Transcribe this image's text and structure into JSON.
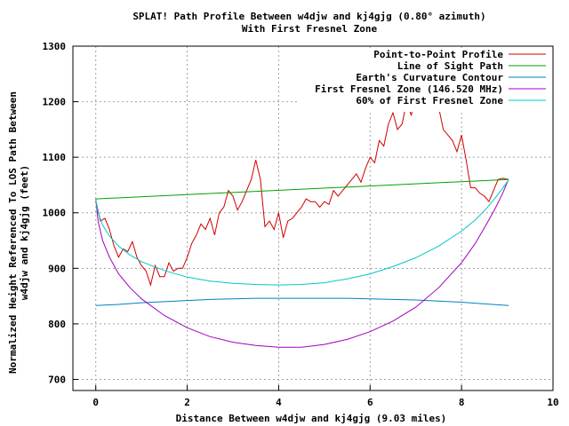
{
  "chart_data": {
    "type": "line",
    "title": "SPLAT! Path Profile Between w4djw and kj4gjg (0.80° azimuth)",
    "subtitle": "With First Fresnel Zone",
    "xlabel": "Distance Between w4djw and kj4gjg (9.03 miles)",
    "ylabel_line1": "Normalized Height Referenced To LOS Path Between",
    "ylabel_line2": "w4djw and kj4gjg (feet)",
    "xlim": [
      -0.5,
      10
    ],
    "ylim": [
      680,
      1300
    ],
    "xticks": [
      0,
      2,
      4,
      6,
      8,
      10
    ],
    "yticks": [
      700,
      800,
      900,
      1000,
      1100,
      1200,
      1300
    ],
    "grid": true,
    "legend_position": "top-right",
    "series": [
      {
        "name": "Point-to-Point Profile",
        "color": "#d00000",
        "x": [
          0,
          0.1,
          0.2,
          0.3,
          0.4,
          0.5,
          0.6,
          0.7,
          0.8,
          0.9,
          1.0,
          1.1,
          1.2,
          1.3,
          1.4,
          1.5,
          1.6,
          1.7,
          1.8,
          1.9,
          2.0,
          2.1,
          2.2,
          2.3,
          2.4,
          2.5,
          2.6,
          2.7,
          2.8,
          2.9,
          3.0,
          3.1,
          3.2,
          3.3,
          3.4,
          3.5,
          3.6,
          3.7,
          3.8,
          3.9,
          4.0,
          4.1,
          4.2,
          4.3,
          4.4,
          4.5,
          4.6,
          4.7,
          4.8,
          4.9,
          5.0,
          5.1,
          5.2,
          5.3,
          5.4,
          5.5,
          5.6,
          5.7,
          5.8,
          5.9,
          6.0,
          6.1,
          6.2,
          6.3,
          6.4,
          6.5,
          6.6,
          6.7,
          6.8,
          6.9,
          7.0,
          7.1,
          7.2,
          7.3,
          7.4,
          7.5,
          7.6,
          7.7,
          7.8,
          7.9,
          8.0,
          8.1,
          8.2,
          8.3,
          8.4,
          8.5,
          8.6,
          8.7,
          8.8,
          8.9,
          9.03
        ],
        "values": [
          1022,
          985,
          990,
          970,
          940,
          920,
          935,
          930,
          948,
          920,
          905,
          895,
          870,
          905,
          885,
          885,
          910,
          895,
          900,
          900,
          920,
          945,
          960,
          980,
          970,
          990,
          960,
          1000,
          1010,
          1040,
          1030,
          1005,
          1020,
          1040,
          1060,
          1095,
          1060,
          975,
          985,
          970,
          1000,
          955,
          985,
          990,
          1000,
          1010,
          1025,
          1020,
          1020,
          1010,
          1020,
          1015,
          1040,
          1030,
          1040,
          1050,
          1060,
          1070,
          1055,
          1080,
          1100,
          1090,
          1130,
          1120,
          1160,
          1180,
          1150,
          1160,
          1200,
          1175,
          1220,
          1265,
          1200,
          1260,
          1240,
          1190,
          1150,
          1140,
          1130,
          1110,
          1140,
          1095,
          1045,
          1045,
          1035,
          1030,
          1020,
          1040,
          1060,
          1062,
          1060
        ]
      },
      {
        "name": "Line of Sight Path",
        "color": "#00a000",
        "x": [
          0,
          9.03
        ],
        "values": [
          1025,
          1060
        ]
      },
      {
        "name": "Earth's Curvature Contour",
        "color": "#0080c0",
        "x": [
          0,
          0.5,
          1,
          1.5,
          2,
          2.5,
          3,
          3.5,
          4,
          4.5,
          5,
          5.5,
          6,
          6.5,
          7,
          7.5,
          8,
          8.5,
          9.03
        ],
        "values": [
          833,
          835,
          838,
          840,
          842,
          844,
          845,
          846,
          846,
          846,
          846,
          846,
          845,
          844,
          843,
          841,
          839,
          836,
          833
        ]
      },
      {
        "name": "First Fresnel Zone (146.520 MHz)",
        "color": "#a000c0",
        "x": [
          0,
          0.05,
          0.15,
          0.3,
          0.5,
          0.75,
          1,
          1.5,
          2,
          2.5,
          3,
          3.5,
          4,
          4.5,
          5,
          5.5,
          6,
          6.5,
          7,
          7.5,
          8,
          8.3,
          8.55,
          8.75,
          8.9,
          9.0,
          9.03
        ],
        "values": [
          1025,
          985,
          950,
          920,
          890,
          865,
          845,
          815,
          793,
          777,
          767,
          761,
          758,
          758,
          763,
          772,
          786,
          805,
          830,
          865,
          910,
          945,
          980,
          1010,
          1035,
          1055,
          1060
        ]
      },
      {
        "name": "60% of First Fresnel Zone",
        "color": "#00c8c8",
        "x": [
          0,
          0.05,
          0.15,
          0.3,
          0.5,
          0.75,
          1,
          1.5,
          2,
          2.5,
          3,
          3.5,
          4,
          4.5,
          5,
          5.5,
          6,
          6.5,
          7,
          7.5,
          8,
          8.3,
          8.55,
          8.75,
          8.9,
          9.0,
          9.03
        ],
        "values": [
          1025,
          1000,
          978,
          958,
          940,
          924,
          912,
          896,
          884,
          877,
          873,
          871,
          870,
          871,
          874,
          881,
          890,
          903,
          919,
          940,
          967,
          987,
          1008,
          1028,
          1044,
          1056,
          1060
        ]
      }
    ]
  }
}
